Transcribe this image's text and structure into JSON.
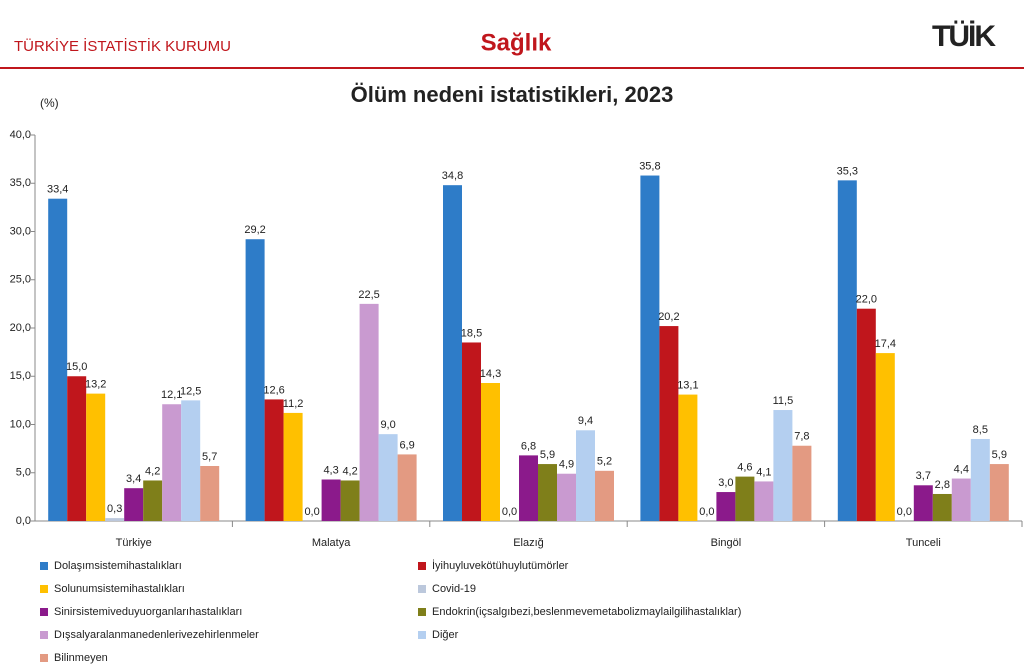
{
  "header": {
    "org": "TÜRKİYE İSTATİSTİK KURUMU",
    "section": "Sağlık",
    "logo": "TÜİK"
  },
  "chart_data": {
    "type": "bar",
    "title": "Ölüm nedeni istatistikleri, 2023",
    "y_label": "(%)",
    "categories": [
      "Türkiye",
      "Malatya",
      "Elazığ",
      "Bingöl",
      "Tunceli"
    ],
    "series": [
      {
        "name": "Dolaşımsistemihastalıkları",
        "color": "#2e7cc8",
        "values": [
          33.4,
          29.2,
          34.8,
          35.8,
          35.3
        ],
        "value_labels": [
          "33,4",
          "29,2",
          "34,8",
          "35,8",
          "35,3"
        ]
      },
      {
        "name": "İyihuyluvekötühuylutümörler",
        "color": "#c0161c",
        "values": [
          15.0,
          12.6,
          18.5,
          20.2,
          22.0
        ],
        "value_labels": [
          "15,0",
          "12,6",
          "18,5",
          "20,2",
          "22,0"
        ]
      },
      {
        "name": "Solunumsistemihastalıkları",
        "color": "#ffc000",
        "values": [
          13.2,
          11.2,
          14.3,
          13.1,
          17.4
        ],
        "value_labels": [
          "13,2",
          "11,2",
          "14,3",
          "13,1",
          "17,4"
        ]
      },
      {
        "name": "Covid-19",
        "color": "#bcc8dc",
        "values": [
          0.3,
          0.0,
          0.0,
          0.0,
          0.0
        ],
        "value_labels": [
          "0,3",
          "0,0",
          "0,0",
          "0,0",
          "0,0"
        ]
      },
      {
        "name": "Sinirsistemiveduyuorganlarıhastalıkları",
        "color": "#8b1a8b",
        "values": [
          3.4,
          4.3,
          6.8,
          3.0,
          3.7
        ],
        "value_labels": [
          "3,4",
          "4,3",
          "6,8",
          "3,0",
          "3,7"
        ]
      },
      {
        "name": "Endokrin(içsalgıbezi,beslenmevemetabolizmaylailgilihastalıklar)",
        "color": "#7f7f1a",
        "values": [
          4.2,
          4.2,
          5.9,
          4.6,
          2.8
        ],
        "value_labels": [
          "4,2",
          "4,2",
          "5,9",
          "4,6",
          "2,8"
        ]
      },
      {
        "name": "Dışsalyaralanmanedenlerivezehirlenmeler",
        "color": "#c99ad0",
        "values": [
          12.1,
          22.5,
          4.9,
          4.1,
          4.4
        ],
        "value_labels": [
          "12,1",
          "22,5",
          "4,9",
          "4,1",
          "4,4"
        ]
      },
      {
        "name": "Diğer",
        "color": "#b4cff0",
        "values": [
          12.5,
          9.0,
          9.4,
          11.5,
          8.5
        ],
        "value_labels": [
          "12,5",
          "9,0",
          "9,4",
          "11,5",
          "8,5"
        ]
      },
      {
        "name": "Bilinmeyen",
        "color": "#e39a82",
        "values": [
          5.7,
          6.9,
          5.2,
          7.8,
          5.9
        ],
        "value_labels": [
          "5,7",
          "6,9",
          "5,2",
          "7,8",
          "5,9"
        ]
      }
    ],
    "ylim": [
      0,
      40
    ],
    "yticks": [
      {
        "value": 0,
        "label": "0,0"
      },
      {
        "value": 5,
        "label": "5,0"
      },
      {
        "value": 10,
        "label": "10,0"
      },
      {
        "value": 15,
        "label": "15,0"
      },
      {
        "value": 20,
        "label": "20,0"
      },
      {
        "value": 25,
        "label": "25,0"
      },
      {
        "value": 30,
        "label": "30,0"
      },
      {
        "value": 35,
        "label": "35,0"
      },
      {
        "value": 40,
        "label": "40,0"
      }
    ],
    "grid": false,
    "legend": "bottom"
  }
}
